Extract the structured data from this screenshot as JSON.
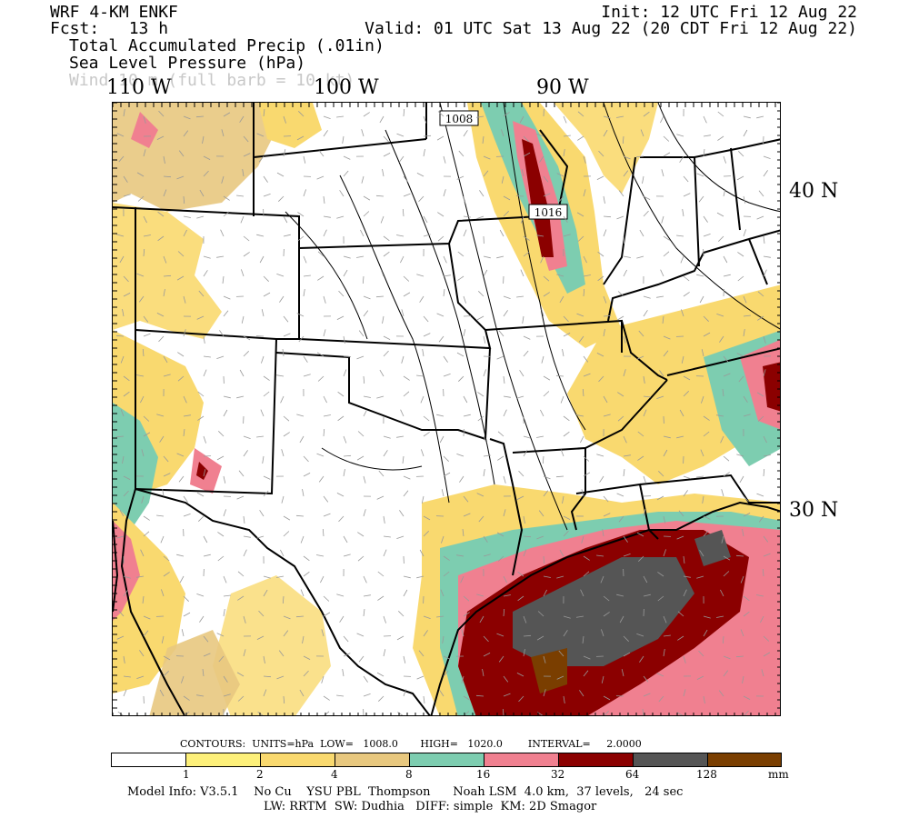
{
  "header": {
    "model": "WRF 4-KM ENKF",
    "fcst": "Fcst:   13 h",
    "init": "Init: 12 UTC Fri 12 Aug 22",
    "valid": "Valid: 01 UTC Sat 13 Aug 22 (20 CDT Fri 12 Aug 22)",
    "fields": [
      "Total Accumulated Precip (.01in)",
      "Sea Level Pressure (hPa)",
      "Wind 10 m (full barb = 10 kt)"
    ]
  },
  "map": {
    "lon_labels": [
      "110 W",
      "100 W",
      "90 W"
    ],
    "lat_labels": [
      "40 N",
      "30 N"
    ],
    "isobar_labels": [
      "1008",
      "1016"
    ]
  },
  "contour_info": {
    "label": "CONTOURS:  UNITS=hPa  LOW=   1008.0       HIGH=   1020.0        INTERVAL=     2.0000"
  },
  "colorbar": {
    "ticks": [
      "1",
      "2",
      "4",
      "8",
      "16",
      "32",
      "64",
      "128"
    ],
    "unit": "mm",
    "colors": [
      "#ffffff",
      "#fdf07a",
      "#f9d96f",
      "#e8c87f",
      "#7dcdb0",
      "#f08090",
      "#8b0000",
      "#555555",
      "#7a3e00"
    ]
  },
  "footer": {
    "line1": "Model Info: V3.5.1    No Cu    YSU PBL  Thompson      Noah LSM  4.0 km,  37 levels,   24 sec",
    "line2": "LW: RRTM  SW: Dudhia   DIFF: simple  KM: 2D Smagor"
  }
}
